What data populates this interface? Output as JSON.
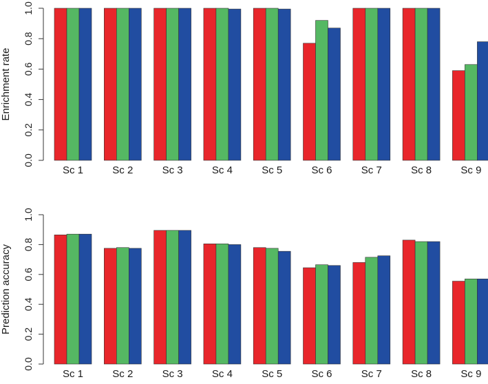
{
  "chart_data": [
    {
      "type": "bar",
      "title": "",
      "xlabel": "",
      "ylabel": "Enrichment rate",
      "ylim": [
        0,
        1
      ],
      "yticks": [
        "0.0",
        "0.2",
        "0.4",
        "0.6",
        "0.8",
        "1.0"
      ],
      "grid": false,
      "categories": [
        "Sc 1",
        "Sc 2",
        "Sc 3",
        "Sc 4",
        "Sc 5",
        "Sc 6",
        "Sc 7",
        "Sc 8",
        "Sc 9"
      ],
      "series": [
        {
          "name": "red",
          "color": "#e8262b",
          "values": [
            1.0,
            1.0,
            1.0,
            1.0,
            1.0,
            0.77,
            1.0,
            1.0,
            0.59
          ]
        },
        {
          "name": "green",
          "color": "#55b863",
          "values": [
            1.0,
            1.0,
            1.0,
            1.0,
            1.0,
            0.92,
            1.0,
            1.0,
            0.63
          ]
        },
        {
          "name": "blue",
          "color": "#214da1",
          "values": [
            1.0,
            1.0,
            1.0,
            0.995,
            0.995,
            0.87,
            1.0,
            1.0,
            0.78
          ]
        }
      ]
    },
    {
      "type": "bar",
      "title": "",
      "xlabel": "",
      "ylabel": "Prediction accuracy",
      "ylim": [
        0,
        1
      ],
      "yticks": [
        "0.0",
        "0.2",
        "0.4",
        "0.6",
        "0.8",
        "1.0"
      ],
      "grid": false,
      "categories": [
        "Sc 1",
        "Sc 2",
        "Sc 3",
        "Sc 4",
        "Sc 5",
        "Sc 6",
        "Sc 7",
        "Sc 8",
        "Sc 9"
      ],
      "series": [
        {
          "name": "red",
          "color": "#e8262b",
          "values": [
            0.865,
            0.775,
            0.895,
            0.805,
            0.78,
            0.645,
            0.68,
            0.83,
            0.555
          ]
        },
        {
          "name": "green",
          "color": "#55b863",
          "values": [
            0.87,
            0.78,
            0.895,
            0.805,
            0.775,
            0.665,
            0.715,
            0.82,
            0.57
          ]
        },
        {
          "name": "blue",
          "color": "#214da1",
          "values": [
            0.87,
            0.775,
            0.895,
            0.8,
            0.755,
            0.66,
            0.725,
            0.82,
            0.57
          ]
        }
      ]
    }
  ]
}
